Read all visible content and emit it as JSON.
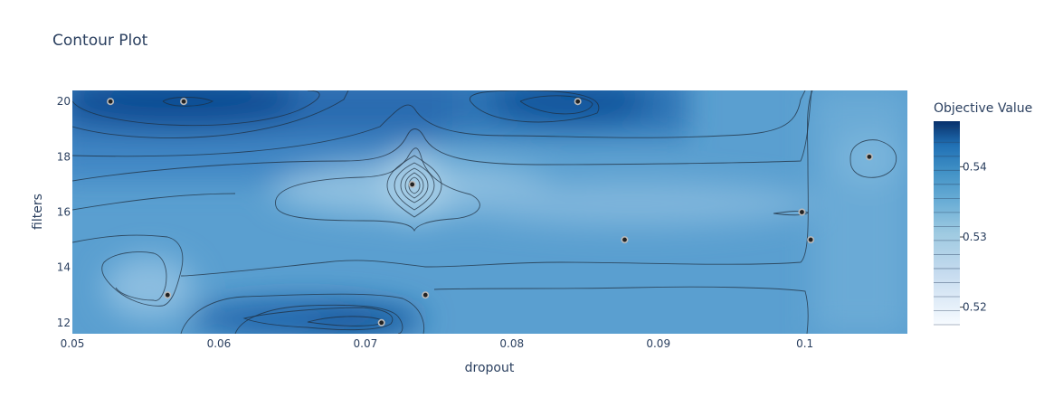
{
  "chart_data": {
    "type": "contour",
    "title": "Contour Plot",
    "xlabel": "dropout",
    "ylabel": "filters",
    "xlim": [
      0.05,
      0.107
    ],
    "ylim": [
      11.6,
      20.4
    ],
    "x_ticks": [
      {
        "value": 0.05,
        "label": "0.05"
      },
      {
        "value": 0.06,
        "label": "0.06"
      },
      {
        "value": 0.07,
        "label": "0.07"
      },
      {
        "value": 0.08,
        "label": "0.08"
      },
      {
        "value": 0.09,
        "label": "0.09"
      },
      {
        "value": 0.1,
        "label": "0.1"
      }
    ],
    "y_ticks": [
      {
        "value": 12,
        "label": "12"
      },
      {
        "value": 14,
        "label": "14"
      },
      {
        "value": 16,
        "label": "16"
      },
      {
        "value": 18,
        "label": "18"
      },
      {
        "value": 20,
        "label": "20"
      }
    ],
    "points": [
      {
        "x": 0.0526,
        "y": 20
      },
      {
        "x": 0.0576,
        "y": 20
      },
      {
        "x": 0.0845,
        "y": 20
      },
      {
        "x": 0.1044,
        "y": 18
      },
      {
        "x": 0.0732,
        "y": 17
      },
      {
        "x": 0.0998,
        "y": 16
      },
      {
        "x": 0.0877,
        "y": 15
      },
      {
        "x": 0.1004,
        "y": 15
      },
      {
        "x": 0.0565,
        "y": 13
      },
      {
        "x": 0.0741,
        "y": 13
      },
      {
        "x": 0.0711,
        "y": 12
      }
    ],
    "colorbar": {
      "title": "Objective Value",
      "range": [
        0.5175,
        0.5465
      ],
      "ticks": [
        {
          "value": 0.52,
          "label": "0.52"
        },
        {
          "value": 0.53,
          "label": "0.53"
        },
        {
          "value": 0.54,
          "label": "0.54"
        }
      ],
      "colorscale": [
        "#f7fbff",
        "#deebf7",
        "#c6dbef",
        "#9ecae1",
        "#6baed6",
        "#4292c6",
        "#2171b5",
        "#08519c",
        "#08306b"
      ]
    },
    "grid": false
  }
}
